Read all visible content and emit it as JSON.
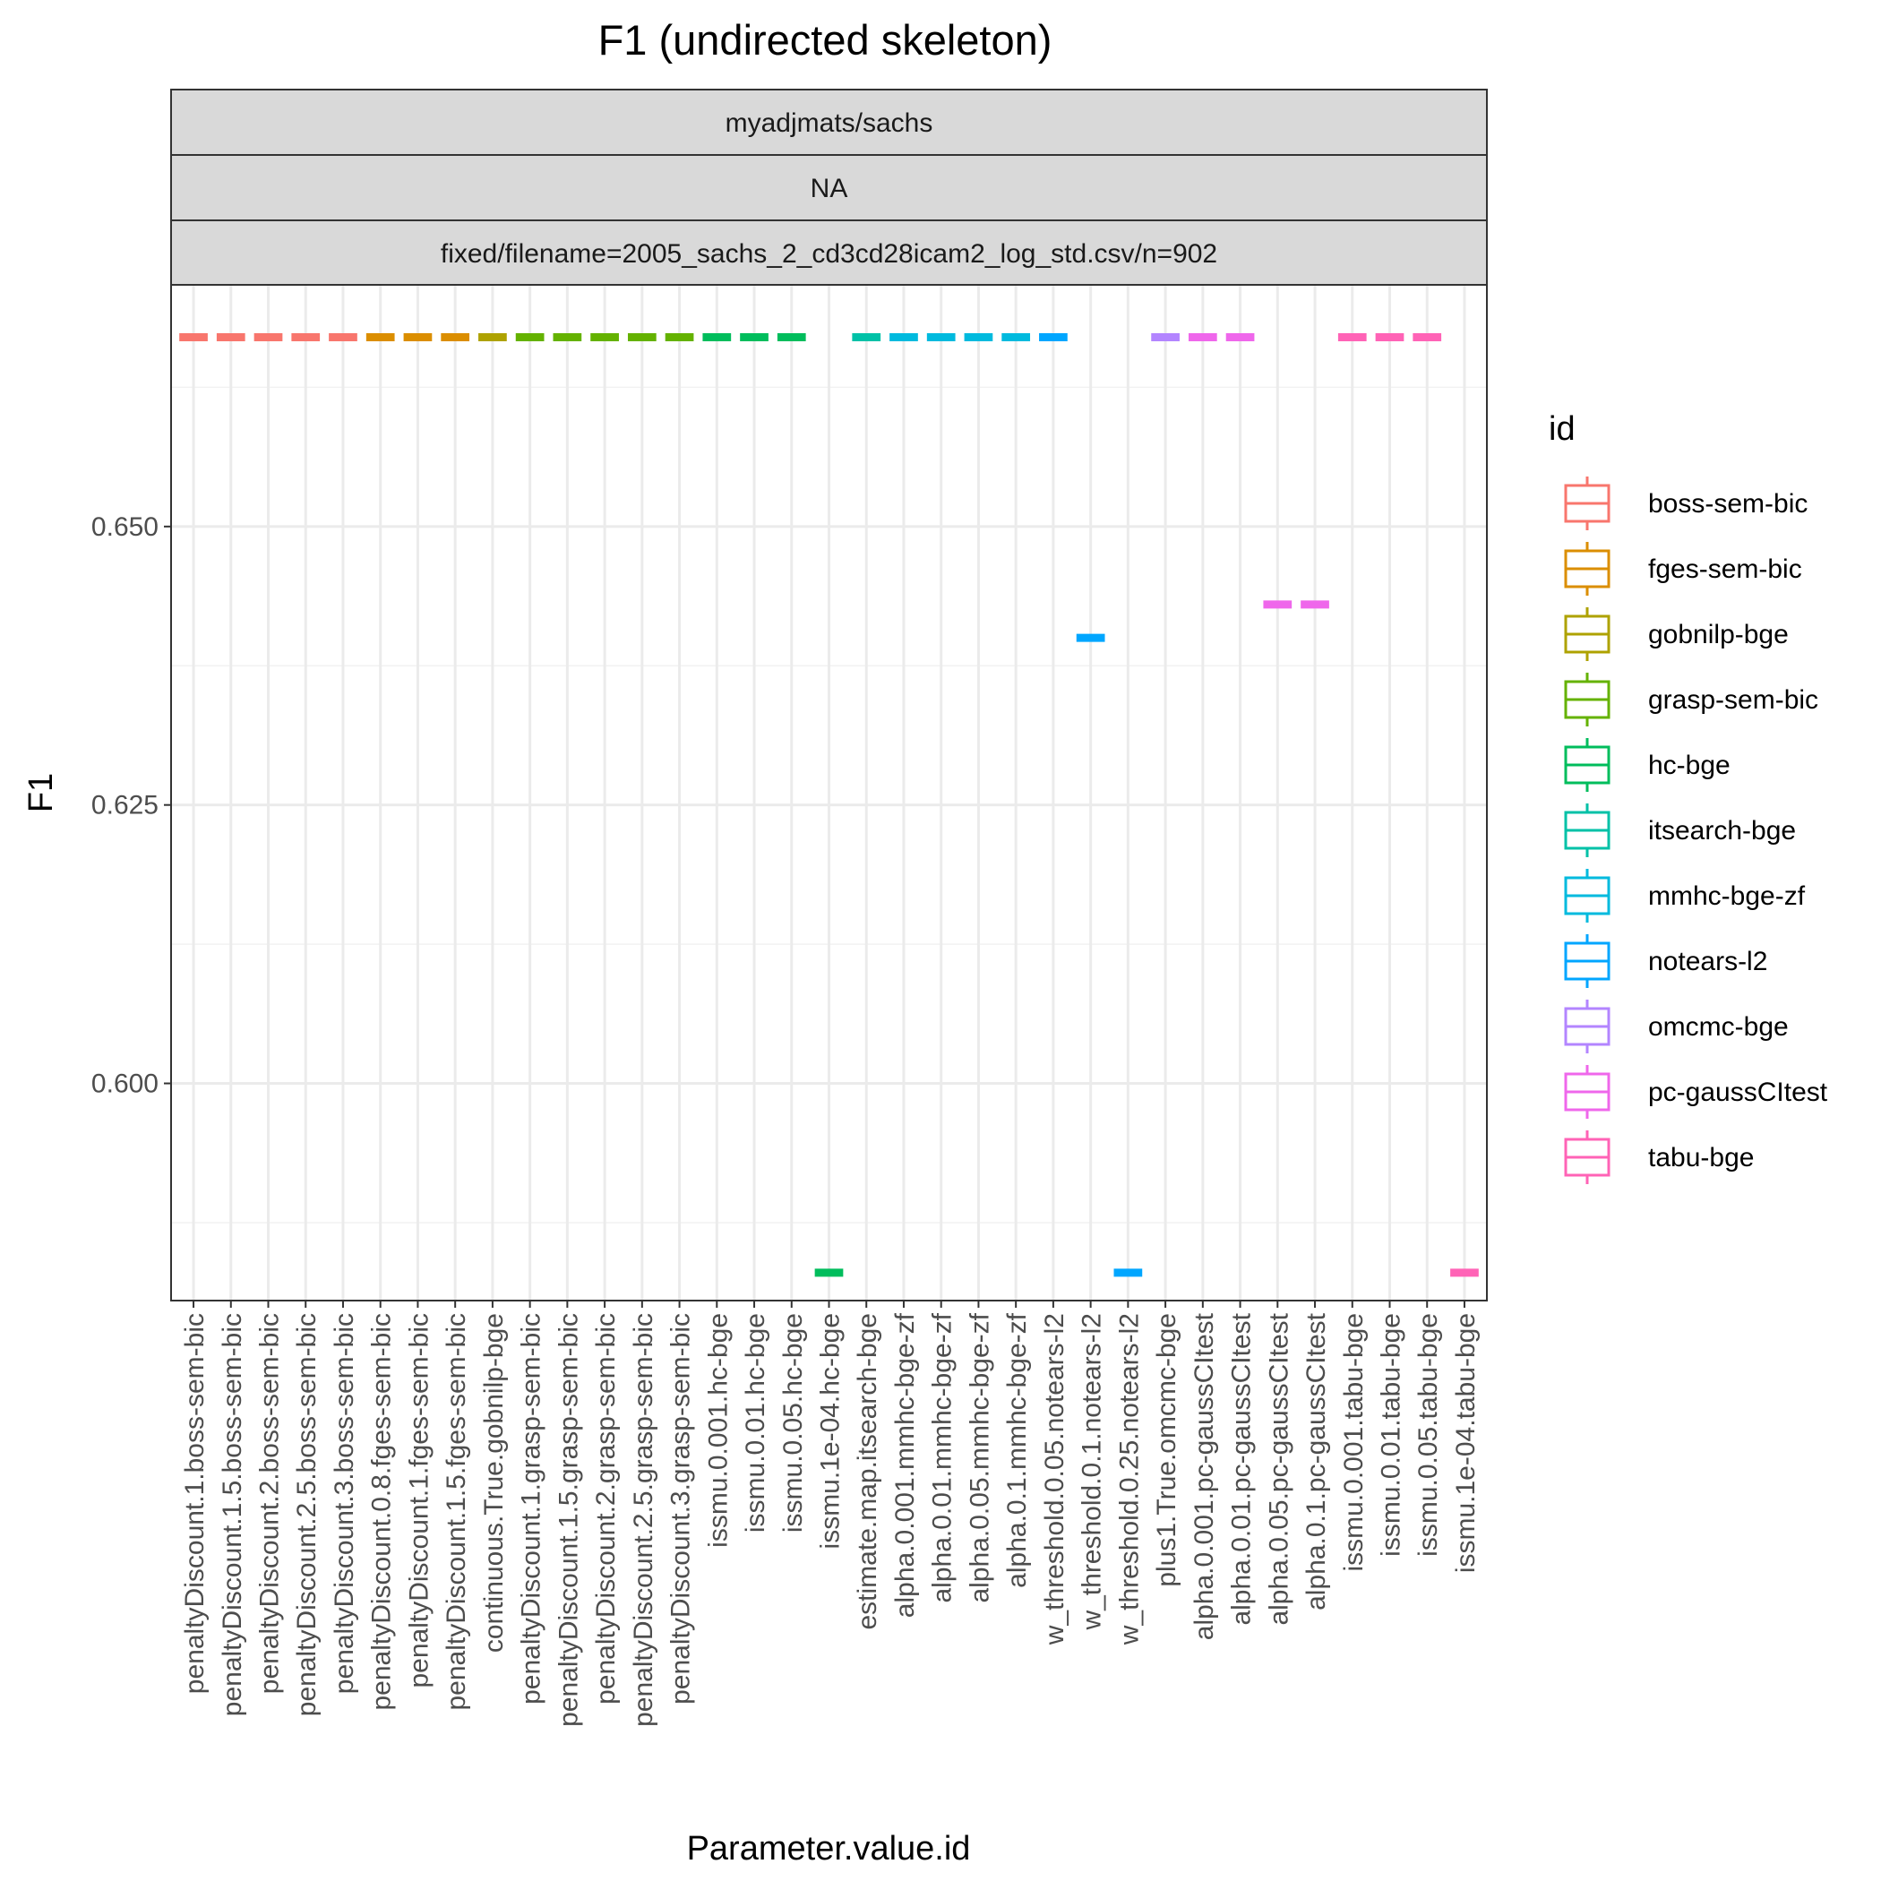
{
  "chart_data": {
    "type": "boxplot",
    "title": "F1 (undirected skeleton)",
    "xlabel": "Parameter.value.id",
    "ylabel": "F1",
    "ylim": [
      0.5805,
      0.6717
    ],
    "y_ticks": [
      0.6,
      0.625,
      0.65
    ],
    "y_tick_labels": [
      "0.600",
      "0.625",
      "0.650"
    ],
    "grid": true,
    "facet_strips": [
      "myadjmats/sachs",
      "NA",
      "fixed/filename=2005_sachs_2_cd3cd28icam2_log_std.csv/n=902"
    ],
    "legend": {
      "title": "id",
      "placement": "right",
      "entries": [
        {
          "label": "boss-sem-bic",
          "color": "#F8766D"
        },
        {
          "label": "fges-sem-bic",
          "color": "#DB8E00"
        },
        {
          "label": "gobnilp-bge",
          "color": "#AEA200"
        },
        {
          "label": "grasp-sem-bic",
          "color": "#64B200"
        },
        {
          "label": "hc-bge",
          "color": "#00BD5C"
        },
        {
          "label": "itsearch-bge",
          "color": "#00C1A7"
        },
        {
          "label": "mmhc-bge-zf",
          "color": "#00BADE"
        },
        {
          "label": "notears-l2",
          "color": "#00A6FF"
        },
        {
          "label": "omcmc-bge",
          "color": "#B385FF"
        },
        {
          "label": "pc-gaussCItest",
          "color": "#EF67EB"
        },
        {
          "label": "tabu-bge",
          "color": "#FF63B6"
        }
      ]
    },
    "points": [
      {
        "x": "penaltyDiscount.1.boss-sem-bic",
        "y": 0.667,
        "group": 0
      },
      {
        "x": "penaltyDiscount.1.5.boss-sem-bic",
        "y": 0.667,
        "group": 0
      },
      {
        "x": "penaltyDiscount.2.boss-sem-bic",
        "y": 0.667,
        "group": 0
      },
      {
        "x": "penaltyDiscount.2.5.boss-sem-bic",
        "y": 0.667,
        "group": 0
      },
      {
        "x": "penaltyDiscount.3.boss-sem-bic",
        "y": 0.667,
        "group": 0
      },
      {
        "x": "penaltyDiscount.0.8.fges-sem-bic",
        "y": 0.667,
        "group": 1
      },
      {
        "x": "penaltyDiscount.1.fges-sem-bic",
        "y": 0.667,
        "group": 1
      },
      {
        "x": "penaltyDiscount.1.5.fges-sem-bic",
        "y": 0.667,
        "group": 1
      },
      {
        "x": "continuous.True.gobnilp-bge",
        "y": 0.667,
        "group": 2
      },
      {
        "x": "penaltyDiscount.1.grasp-sem-bic",
        "y": 0.667,
        "group": 3
      },
      {
        "x": "penaltyDiscount.1.5.grasp-sem-bic",
        "y": 0.667,
        "group": 3
      },
      {
        "x": "penaltyDiscount.2.grasp-sem-bic",
        "y": 0.667,
        "group": 3
      },
      {
        "x": "penaltyDiscount.2.5.grasp-sem-bic",
        "y": 0.667,
        "group": 3
      },
      {
        "x": "penaltyDiscount.3.grasp-sem-bic",
        "y": 0.667,
        "group": 3
      },
      {
        "x": "issmu.0.001.hc-bge",
        "y": 0.667,
        "group": 4
      },
      {
        "x": "issmu.0.01.hc-bge",
        "y": 0.667,
        "group": 4
      },
      {
        "x": "issmu.0.05.hc-bge",
        "y": 0.667,
        "group": 4
      },
      {
        "x": "issmu.1e-04.hc-bge",
        "y": 0.583,
        "group": 4
      },
      {
        "x": "estimate.map.itsearch-bge",
        "y": 0.667,
        "group": 5
      },
      {
        "x": "alpha.0.001.mmhc-bge-zf",
        "y": 0.667,
        "group": 6
      },
      {
        "x": "alpha.0.01.mmhc-bge-zf",
        "y": 0.667,
        "group": 6
      },
      {
        "x": "alpha.0.05.mmhc-bge-zf",
        "y": 0.667,
        "group": 6
      },
      {
        "x": "alpha.0.1.mmhc-bge-zf",
        "y": 0.667,
        "group": 6
      },
      {
        "x": "w_threshold.0.05.notears-l2",
        "y": 0.667,
        "group": 7
      },
      {
        "x": "w_threshold.0.1.notears-l2",
        "y": 0.64,
        "group": 7
      },
      {
        "x": "w_threshold.0.25.notears-l2",
        "y": 0.583,
        "group": 7
      },
      {
        "x": "plus1.True.omcmc-bge",
        "y": 0.667,
        "group": 8
      },
      {
        "x": "alpha.0.001.pc-gaussCItest",
        "y": 0.667,
        "group": 9
      },
      {
        "x": "alpha.0.01.pc-gaussCItest",
        "y": 0.667,
        "group": 9
      },
      {
        "x": "alpha.0.05.pc-gaussCItest",
        "y": 0.643,
        "group": 9
      },
      {
        "x": "alpha.0.1.pc-gaussCItest",
        "y": 0.643,
        "group": 9
      },
      {
        "x": "issmu.0.001.tabu-bge",
        "y": 0.667,
        "group": 10
      },
      {
        "x": "issmu.0.01.tabu-bge",
        "y": 0.667,
        "group": 10
      },
      {
        "x": "issmu.0.05.tabu-bge",
        "y": 0.667,
        "group": 10
      },
      {
        "x": "issmu.1e-04.tabu-bge",
        "y": 0.583,
        "group": 10
      }
    ]
  }
}
